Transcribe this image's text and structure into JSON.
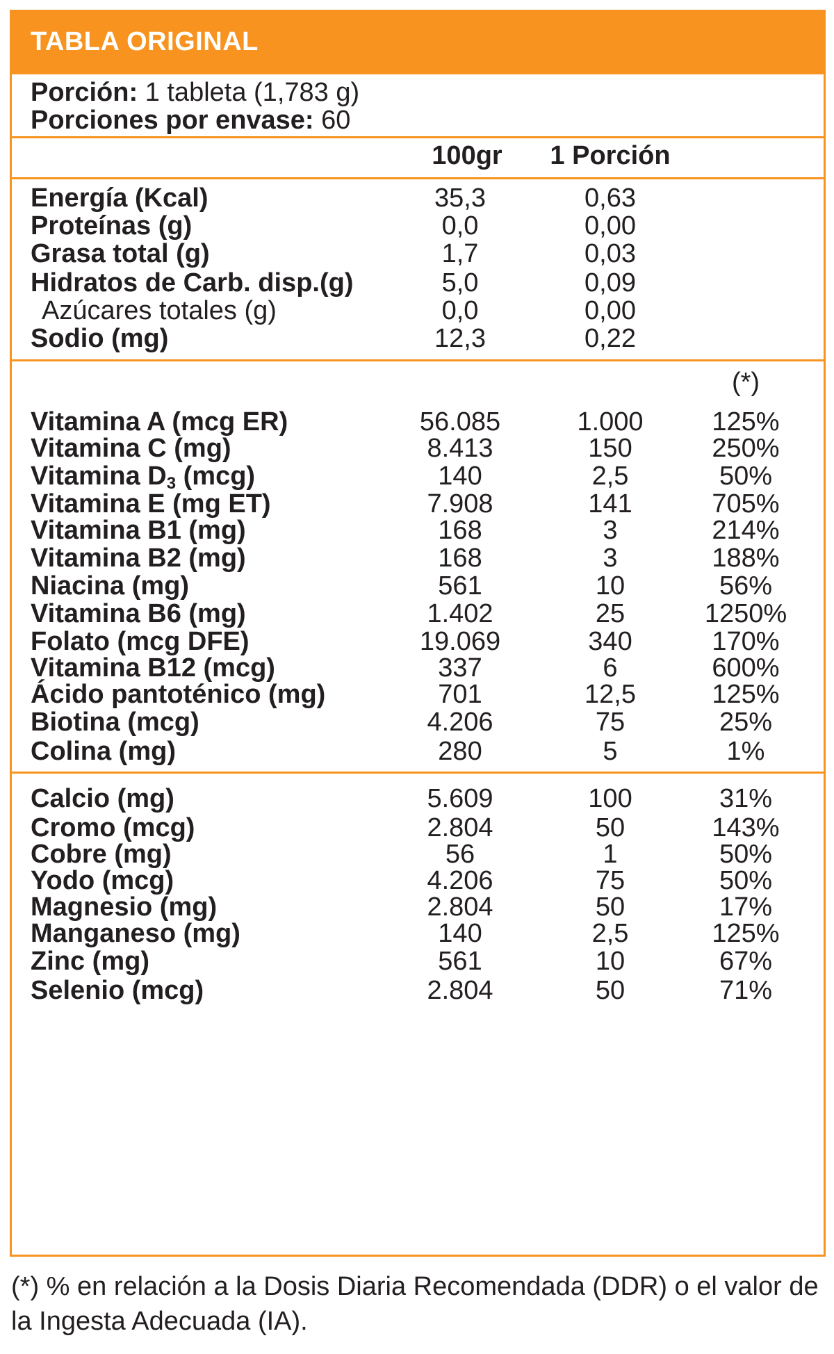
{
  "header": {
    "title": "TABLA ORIGINAL"
  },
  "serving": {
    "portion_label": "Porción:",
    "portion_value": "1 tableta (1,783 g)",
    "per_pack_label": "Porciones por envase:",
    "per_pack_value": "60"
  },
  "columns": {
    "per100": "100gr",
    "per_portion": "1 Porción",
    "asterisk": "(*)"
  },
  "nutrients": [
    {
      "label": "Energía (Kcal)",
      "per100": "35,3",
      "portion": "0,63"
    },
    {
      "label": "Proteínas (g)",
      "per100": "0,0",
      "portion": "0,00"
    },
    {
      "label": "Grasa total (g)",
      "per100": "1,7",
      "portion": "0,03"
    },
    {
      "label": "Hidratos de Carb. disp.(g)",
      "per100": "5,0",
      "portion": "0,09"
    },
    {
      "label": "Azúcares totales (g)",
      "per100": "0,0",
      "portion": "0,00"
    },
    {
      "label": "Sodio (mg)",
      "per100": "12,3",
      "portion": "0,22"
    }
  ],
  "vitamins": [
    {
      "label": "Vitamina A (mcg ER)",
      "per100": "56.085",
      "portion": "1.000",
      "pct": "125%"
    },
    {
      "label": "Vitamina C (mg)",
      "per100": "8.413",
      "portion": "150",
      "pct": "250%"
    },
    {
      "label": "Vitamina D",
      "label_sub": "3",
      "label_after": " (mcg)",
      "per100": "140",
      "portion": "2,5",
      "pct": "50%"
    },
    {
      "label": "Vitamina E (mg ET)",
      "per100": "7.908",
      "portion": "141",
      "pct": "705%"
    },
    {
      "label": "Vitamina B1 (mg)",
      "per100": "168",
      "portion": "3",
      "pct": "214%"
    },
    {
      "label": "Vitamina B2 (mg)",
      "per100": "168",
      "portion": "3",
      "pct": "188%"
    },
    {
      "label": "Niacina (mg)",
      "per100": "561",
      "portion": "10",
      "pct": "56%"
    },
    {
      "label": "Vitamina B6 (mg)",
      "per100": "1.402",
      "portion": "25",
      "pct": "1250%"
    },
    {
      "label": "Folato (mcg DFE)",
      "per100": "19.069",
      "portion": "340",
      "pct": "170%"
    },
    {
      "label": "Vitamina B12 (mcg)",
      "per100": "337",
      "portion": "6",
      "pct": "600%"
    },
    {
      "label": "Ácido pantoténico (mg)",
      "per100": "701",
      "portion": "12,5",
      "pct": "125%"
    },
    {
      "label": "Biotina (mcg)",
      "per100": "4.206",
      "portion": "75",
      "pct": "25%"
    },
    {
      "label": "Colina (mg)",
      "per100": "280",
      "portion": "5",
      "pct": "1%"
    }
  ],
  "minerals": [
    {
      "label": "Calcio (mg)",
      "per100": "5.609",
      "portion": "100",
      "pct": "31%"
    },
    {
      "label": "Cromo (mcg)",
      "per100": "2.804",
      "portion": "50",
      "pct": "143%"
    },
    {
      "label": "Cobre (mg)",
      "per100": "56",
      "portion": "1",
      "pct": "50%"
    },
    {
      "label": "Yodo (mcg)",
      "per100": "4.206",
      "portion": "75",
      "pct": "50%"
    },
    {
      "label": "Magnesio (mg)",
      "per100": "2.804",
      "portion": "50",
      "pct": "17%"
    },
    {
      "label": "Manganeso (mg)",
      "per100": "140",
      "portion": "2,5",
      "pct": "125%"
    },
    {
      "label": "Zinc (mg)",
      "per100": "561",
      "portion": "10",
      "pct": "67%"
    },
    {
      "label": "Selenio (mcg)",
      "per100": "2.804",
      "portion": "50",
      "pct": "71%"
    }
  ],
  "footnote": "(*) % en relación a la Dosis Diaria Recomendada (DDR) o el valor de la Ingesta Adecuada (IA).",
  "colors": {
    "accent": "#f7931e",
    "text": "#231f20"
  }
}
